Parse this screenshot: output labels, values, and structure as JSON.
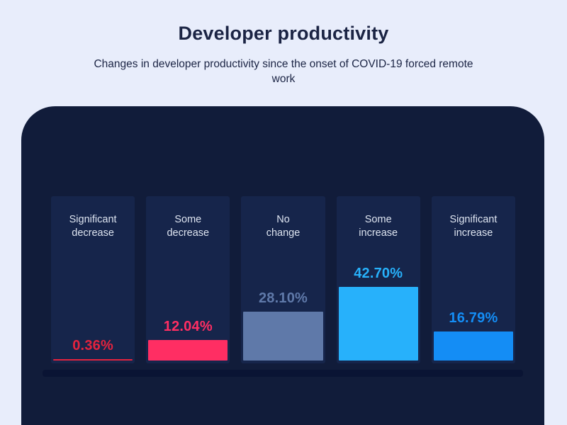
{
  "header": {
    "title": "Developer productivity",
    "subtitle": "Changes in developer productivity since the onset of COVID-19 forced remote work"
  },
  "chart_data": {
    "type": "bar",
    "title": "Developer productivity",
    "subtitle": "Changes in developer productivity since the onset of COVID-19 forced remote work",
    "categories": [
      "Significant decrease",
      "Some decrease",
      "No change",
      "Some increase",
      "Significant increase"
    ],
    "values": [
      0.36,
      12.04,
      28.1,
      42.7,
      16.79
    ],
    "value_labels": [
      "0.36%",
      "12.04%",
      "28.10%",
      "42.70%",
      "16.79%"
    ],
    "unit": "%",
    "bar_colors": [
      "#e4233e",
      "#ff2e63",
      "#5f79a9",
      "#27b1fb",
      "#148df5"
    ],
    "ylim": [
      0,
      45
    ],
    "grid": false,
    "legend": false,
    "orientation": "vertical",
    "value_label_position": "above-bar"
  },
  "theme": {
    "page_bg": "#e8edfb",
    "title_color": "#1b2444",
    "board_bg": "#111c3a",
    "panel_bg": "#16254b",
    "label_color": "#dde4f0",
    "baseline_color": "#0a1434"
  }
}
